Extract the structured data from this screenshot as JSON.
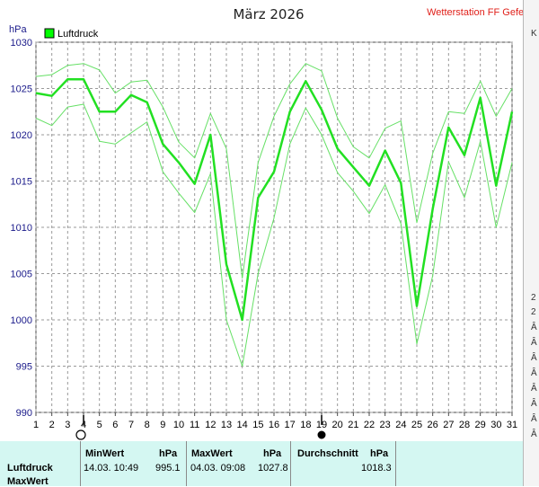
{
  "chart_data": {
    "type": "line",
    "title": "März 2026",
    "station": "Wetterstation FF Gefell",
    "ylabel": "hPa",
    "ylim": [
      990,
      1030
    ],
    "yticks": [
      "990",
      "995",
      "1000",
      "1005",
      "1010",
      "1015",
      "1020",
      "1025",
      "1030"
    ],
    "x": [
      1,
      2,
      3,
      4,
      5,
      6,
      7,
      8,
      9,
      10,
      11,
      12,
      13,
      14,
      15,
      16,
      17,
      18,
      19,
      20,
      21,
      22,
      23,
      24,
      25,
      26,
      27,
      28,
      29,
      30,
      31
    ],
    "grid": true,
    "legend": {
      "position": "top-left",
      "label": "Luftdruck",
      "color": "#00ff00"
    },
    "series": [
      {
        "name": "Luftdruck",
        "color": "#22e022",
        "width": 2.5,
        "values": [
          1024.5,
          1024.2,
          1026.0,
          1026.0,
          1022.5,
          1022.5,
          1024.3,
          1023.5,
          1019.0,
          1017.0,
          1014.7,
          1020.0,
          1006.0,
          1000.0,
          1013.2,
          1016.0,
          1022.5,
          1025.8,
          1022.7,
          1018.5,
          1016.5,
          1014.5,
          1018.3,
          1014.8,
          1001.5,
          1012.0,
          1020.8,
          1017.8,
          1024.0,
          1014.5,
          1022.5
        ]
      },
      {
        "color": "#66e066",
        "width": 1,
        "values": [
          1026.3,
          1026.5,
          1027.5,
          1027.7,
          1027.0,
          1024.5,
          1025.7,
          1025.9,
          1023.0,
          1019.2,
          1017.5,
          1022.3,
          1018.5,
          1004.5,
          1017.0,
          1022.0,
          1025.5,
          1027.7,
          1026.9,
          1021.8,
          1018.7,
          1017.5,
          1020.7,
          1021.5,
          1010.5,
          1018.0,
          1022.5,
          1022.3,
          1025.8,
          1022.0,
          1025.0
        ]
      },
      {
        "color": "#66e066",
        "width": 1,
        "values": [
          1021.8,
          1021.0,
          1023.0,
          1023.3,
          1019.3,
          1019.0,
          1020.2,
          1021.4,
          1016.0,
          1013.7,
          1011.6,
          1015.8,
          1000.0,
          995.0,
          1005.0,
          1011.0,
          1019.0,
          1022.9,
          1020.0,
          1015.9,
          1013.9,
          1011.5,
          1014.6,
          1010.4,
          997.4,
          1004.8,
          1017.1,
          1013.2,
          1019.3,
          1010.0,
          1017.0
        ]
      }
    ],
    "markers": {
      "open_circle_day": 4,
      "filled_circle_day": 19
    }
  },
  "stats": {
    "row_label": "Luftdruck",
    "row2_label": "MaxWert",
    "min": {
      "header": "MinWert",
      "unit": "hPa",
      "datetime": "14.03.  10:49",
      "value": "995.1"
    },
    "max": {
      "header": "MaxWert",
      "unit": "hPa",
      "datetime": "04.03.  09:08",
      "value": "1027.8"
    },
    "avg": {
      "header": "Durchschnitt",
      "unit": "hPa",
      "value": "1018.3"
    }
  },
  "right_strip_fragments": [
    "K",
    "2",
    "2",
    "Â",
    "Â",
    "Â",
    "Â",
    "Â",
    "Â",
    "Â",
    "Â"
  ]
}
